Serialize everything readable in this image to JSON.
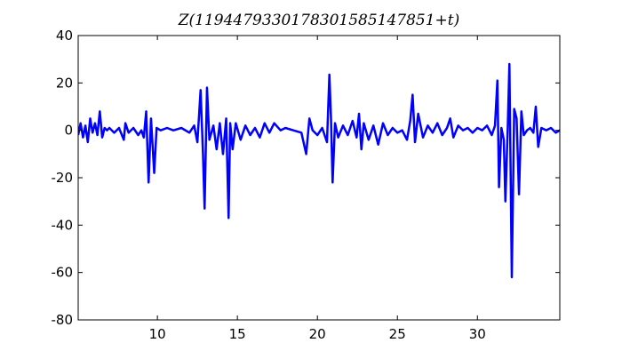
{
  "chart_data": {
    "type": "line",
    "title": "Z(1194479330178301585147851+t)",
    "xlim": [
      5.05,
      35.15
    ],
    "ylim": [
      -80,
      40
    ],
    "xticks": [
      10,
      15,
      20,
      25,
      30
    ],
    "yticks": [
      -80,
      -60,
      -40,
      -20,
      0,
      20,
      40
    ],
    "series": [
      {
        "color": "#0000ff",
        "x": [
          5.05,
          5.2,
          5.35,
          5.5,
          5.65,
          5.8,
          5.95,
          6.1,
          6.25,
          6.4,
          6.55,
          6.7,
          6.85,
          7.0,
          7.3,
          7.6,
          7.9,
          8.0,
          8.2,
          8.5,
          8.8,
          9.0,
          9.15,
          9.3,
          9.45,
          9.6,
          9.8,
          9.95,
          10.2,
          10.6,
          11.0,
          11.5,
          12.0,
          12.3,
          12.5,
          12.7,
          12.85,
          12.95,
          13.1,
          13.25,
          13.5,
          13.7,
          13.9,
          14.1,
          14.3,
          14.45,
          14.55,
          14.7,
          14.9,
          15.2,
          15.5,
          15.8,
          16.1,
          16.4,
          16.7,
          17.0,
          17.3,
          17.7,
          18.0,
          18.5,
          19.0,
          19.3,
          19.5,
          19.7,
          20.0,
          20.3,
          20.6,
          20.75,
          20.85,
          20.95,
          21.1,
          21.3,
          21.6,
          21.9,
          22.2,
          22.45,
          22.6,
          22.75,
          22.9,
          23.2,
          23.5,
          23.8,
          24.1,
          24.4,
          24.7,
          25.0,
          25.3,
          25.6,
          25.8,
          25.95,
          26.1,
          26.3,
          26.6,
          26.9,
          27.2,
          27.5,
          27.8,
          28.1,
          28.3,
          28.5,
          28.8,
          29.1,
          29.4,
          29.7,
          30.0,
          30.3,
          30.6,
          30.9,
          31.1,
          31.25,
          31.35,
          31.5,
          31.65,
          31.75,
          31.9,
          32.0,
          32.15,
          32.3,
          32.45,
          32.6,
          32.75,
          32.9,
          33.1,
          33.3,
          33.5,
          33.65,
          33.8,
          34.0,
          34.3,
          34.6,
          34.9,
          35.15
        ],
        "values": [
          -2,
          3,
          -3,
          2,
          -5,
          5,
          -1,
          3,
          -2,
          8,
          -3,
          1,
          0,
          1,
          -1,
          1,
          -4,
          3,
          -1,
          1,
          -2,
          0,
          -3,
          8,
          -22,
          5,
          -18,
          1,
          0,
          1,
          0,
          1,
          -1,
          2,
          -5,
          17,
          -10,
          -33,
          18,
          -4,
          2,
          -8,
          3,
          -10,
          5,
          -37,
          3,
          -8,
          3,
          -4,
          2,
          -2,
          1,
          -3,
          3,
          -1,
          3,
          0,
          1,
          0,
          -1,
          -10,
          5,
          0,
          -2,
          1,
          -5,
          23.5,
          5,
          -22,
          3,
          -3,
          2,
          -2,
          4,
          -3,
          7,
          -8,
          3,
          -4,
          2,
          -6,
          3,
          -2,
          1,
          -1,
          0,
          -4,
          4,
          15,
          -5,
          7,
          -3,
          2,
          -1,
          3,
          -2,
          1,
          5,
          -3,
          2,
          0,
          1,
          -1,
          1,
          0,
          2,
          -2,
          2,
          21,
          -24,
          1,
          -4,
          -30,
          2,
          28,
          -62,
          9,
          5,
          -27,
          8,
          -2,
          0,
          1,
          -1,
          10,
          -7,
          1,
          0,
          1,
          -1,
          0
        ]
      }
    ]
  }
}
